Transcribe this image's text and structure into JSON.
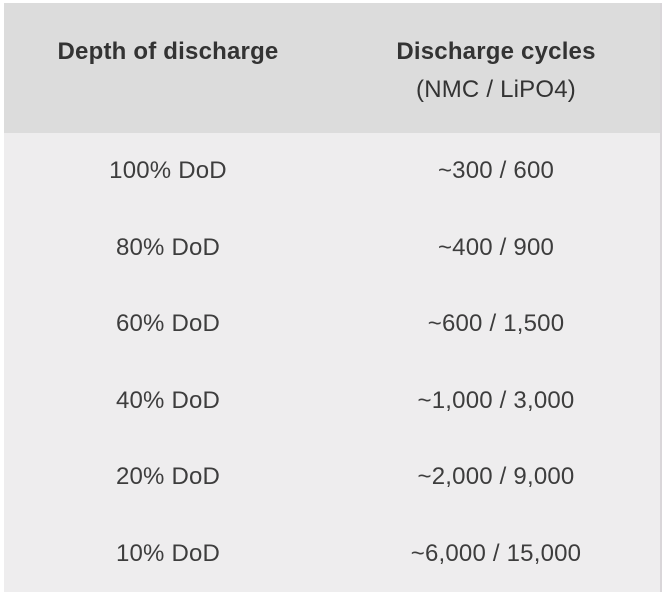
{
  "table": {
    "header": {
      "depth_label": "Depth of discharge",
      "cycles_label": "Discharge cycles",
      "cycles_sublabel": "(NMC / LiPO4)"
    },
    "rows": [
      {
        "dod": "100% DoD",
        "cycles": "~300 / 600"
      },
      {
        "dod": "80% DoD",
        "cycles": "~400 / 900"
      },
      {
        "dod": "60% DoD",
        "cycles": "~600 / 1,500"
      },
      {
        "dod": "40% DoD",
        "cycles": "~1,000 / 3,000"
      },
      {
        "dod": "20% DoD",
        "cycles": "~2,000 / 9,000"
      },
      {
        "dod": "10% DoD",
        "cycles": "~6,000 / 15,000"
      }
    ],
    "colors": {
      "header_bg": "#dcdcdc",
      "body_bg": "#eeedee",
      "header_text": "#333333",
      "body_text": "#3d3d3d",
      "edge_border": "#d9d6d9",
      "page_bg": "#ffffff"
    }
  },
  "chart_data": {
    "type": "table",
    "columns": [
      "Depth of discharge",
      "Discharge cycles (NMC / LiPO4)"
    ],
    "rows": [
      [
        "100% DoD",
        "~300 / 600"
      ],
      [
        "80% DoD",
        "~400 / 900"
      ],
      [
        "60% DoD",
        "~600 / 1,500"
      ],
      [
        "40% DoD",
        "~1,000 / 3,000"
      ],
      [
        "20% DoD",
        "~2,000 / 9,000"
      ],
      [
        "10% DoD",
        "~6,000 / 15,000"
      ]
    ],
    "dod_percent": [
      100,
      80,
      60,
      40,
      20,
      10
    ],
    "series": [
      {
        "name": "NMC cycles (approx)",
        "values": [
          300,
          400,
          600,
          1000,
          2000,
          6000
        ]
      },
      {
        "name": "LiPO4 cycles (approx)",
        "values": [
          600,
          900,
          1500,
          3000,
          9000,
          15000
        ]
      }
    ]
  }
}
